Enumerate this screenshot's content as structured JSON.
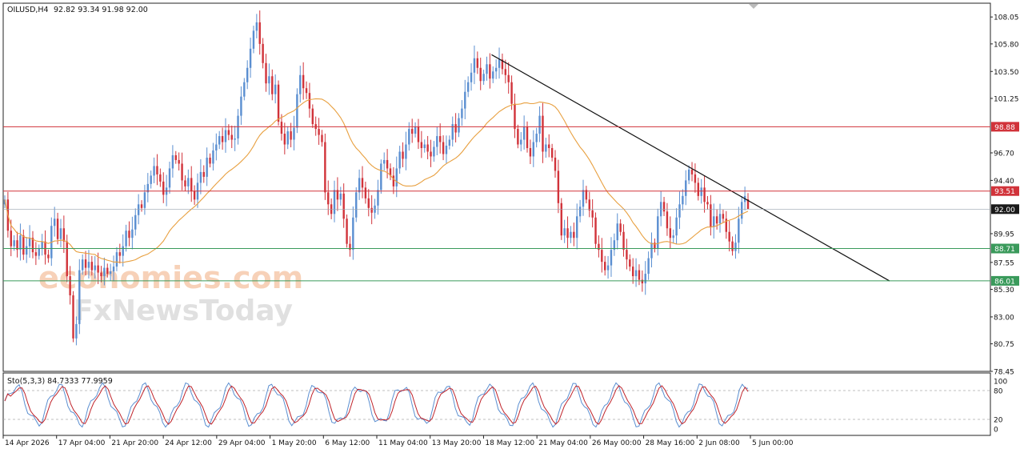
{
  "header": {
    "symbol_text": "OILUSD,H4",
    "ohlc_text": "92.82 93.34 91.98 92.00"
  },
  "chart_data": [
    {
      "type": "candlestick",
      "symbol": "OILUSD",
      "timeframe": "H4",
      "last_bar": {
        "open": 92.82,
        "high": 93.34,
        "low": 91.98,
        "close": 92.0
      },
      "ylim": [
        78.45,
        109.2
      ],
      "y_ticks": [
        "108.05",
        "105.80",
        "103.50",
        "101.25",
        "96.70",
        "94.40",
        "89.95",
        "87.55",
        "85.30",
        "83.00",
        "80.75",
        "78.45"
      ],
      "x_ticks": [
        "14 Apr 2026",
        "17 Apr 04:00",
        "21 Apr 20:00",
        "24 Apr 12:00",
        "29 Apr 04:00",
        "1 May 20:00",
        "6 May 12:00",
        "11 May 04:00",
        "13 May 20:00",
        "18 May 12:00",
        "21 May 04:00",
        "26 May 00:00",
        "28 May 16:00",
        "2 Jun 08:00",
        "5 Jun 00:00"
      ],
      "close_series": [
        92.8,
        90.2,
        88.9,
        89.4,
        88.6,
        89.8,
        88.2,
        88.9,
        89.6,
        88.4,
        88.1,
        88.7,
        89.3,
        88.2,
        87.9,
        90.6,
        91.2,
        89.5,
        90.4,
        89.3,
        86.4,
        84.8,
        81.2,
        82.4,
        86.9,
        87.8,
        87.1,
        87.6,
        86.9,
        87.3,
        86.7,
        86.4,
        87.1,
        86.6,
        86.8,
        87.2,
        88.4,
        88.1,
        88.9,
        90.2,
        89.6,
        90.3,
        91.5,
        92.4,
        92.1,
        93.4,
        94.1,
        94.8,
        95.6,
        94.9,
        94.3,
        93.2,
        93.8,
        95.4,
        96.5,
        96.1,
        95.8,
        94.4,
        93.9,
        94.6,
        93.5,
        92.8,
        94.2,
        95.1,
        94.7,
        96.3,
        95.8,
        96.9,
        97.4,
        98.1,
        97.6,
        98.6,
        98.2,
        97.8,
        97.9,
        99.8,
        101.4,
        102.6,
        103.8,
        105.4,
        106.9,
        107.6,
        105.8,
        104.2,
        102.5,
        103.1,
        101.6,
        102.4,
        99.3,
        98.3,
        97.4,
        98.5,
        97.8,
        98.8,
        101.6,
        103.2,
        102.1,
        101.7,
        100.4,
        99.1,
        98.7,
        98.2,
        97.6,
        93.4,
        92.4,
        91.6,
        93.6,
        92.8,
        93.3,
        91.2,
        89.1,
        88.6,
        91.3,
        93.4,
        94.6,
        93.8,
        92.9,
        92.1,
        91.7,
        92.3,
        93.6,
        95.8,
        96.1,
        95.4,
        94.8,
        93.9,
        95.4,
        96.8,
        96.2,
        97.4,
        98.7,
        98.3,
        98.9,
        97.6,
        97.1,
        97.4,
        96.8,
        96.4,
        97.2,
        98.1,
        97.6,
        96.6,
        97.3,
        97.8,
        99.1,
        98.4,
        99.6,
        100.4,
        101.8,
        102.6,
        103.4,
        104.6,
        103.8,
        102.7,
        103.3,
        104.1,
        102.9,
        103.5,
        103.8,
        104.5,
        103.7,
        103.2,
        102.6,
        100.8,
        98.7,
        97.4,
        97.8,
        98.9,
        97.1,
        96.4,
        97.6,
        98.3,
        99.8,
        96.8,
        97.4,
        97.1,
        96.3,
        95.2,
        92.5,
        89.8,
        90.4,
        89.6,
        90.1,
        89.6,
        91.4,
        92.2,
        93.6,
        92.8,
        91.9,
        91.3,
        89.1,
        88.6,
        87.6,
        86.9,
        87.3,
        88.6,
        89.4,
        90.8,
        90.1,
        88.6,
        87.8,
        87.2,
        86.4,
        86.9,
        86.1,
        85.8,
        86.6,
        87.9,
        89.2,
        88.7,
        91.4,
        92.6,
        91.8,
        90.4,
        89.6,
        89.8,
        91.3,
        92.4,
        93.1,
        94.4,
        95.3,
        94.9,
        94.2,
        93.1,
        93.8,
        92.6,
        92.4,
        90.5,
        91.4,
        90.8,
        91.6,
        91.2,
        90.1,
        89.3,
        88.5,
        89.2,
        91.2,
        92.6,
        93.1,
        92.0
      ],
      "ma_line": {
        "color": "#e8a040"
      },
      "trendline": {
        "from": {
          "x": "18 May 12:00",
          "y": 104.9
        },
        "to_y": 86.0
      },
      "horizontal_levels": [
        {
          "label": "98.88",
          "color": "#d1333a"
        },
        {
          "label": "93.51",
          "color": "#d1333a"
        },
        {
          "label": "92.00",
          "color": "#1a1a1a"
        },
        {
          "label": "88.71",
          "color": "#3a9a5b"
        },
        {
          "label": "86.01",
          "color": "#3a9a5b"
        }
      ],
      "bull_color": "#5b8fd1",
      "bear_color": "#d1333a",
      "grid": false
    },
    {
      "type": "line",
      "indicator_text": "Sto(5,3,3) 84.7333 77.9959",
      "ylim": [
        0,
        100
      ],
      "y_ticks": [
        "100",
        "80",
        "20",
        "0"
      ],
      "levels": [
        80,
        20
      ],
      "main_line_color": "#5b8fd1",
      "signal_line_color": "#c0242b",
      "last_main": 84.7333,
      "last_signal": 77.9959
    }
  ],
  "watermark": {
    "line1": "economies.com",
    "line2": "FxNewsToday"
  }
}
